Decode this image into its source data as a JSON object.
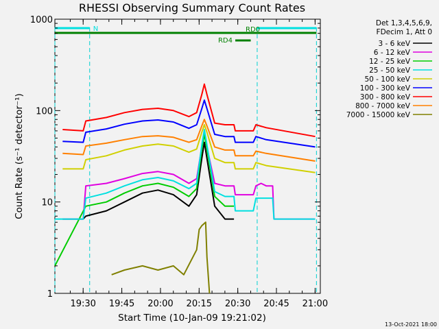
{
  "chart_data": {
    "type": "line",
    "title": "RHESSI Observing Summary Count Rates",
    "xlabel": "Start Time (10-Jan-09 19:21:02)",
    "ylabel": "Count Rate (s⁻¹ detector⁻¹)",
    "ylog": true,
    "xlim_minutes": [
      -2.0,
      101.0
    ],
    "ylim": [
      1,
      1000
    ],
    "x_ticks": [
      {
        "label": "19:30",
        "min": 8.97
      },
      {
        "label": "19:45",
        "min": 23.97
      },
      {
        "label": "20:00",
        "min": 38.97
      },
      {
        "label": "20:15",
        "min": 53.97
      },
      {
        "label": "20:30",
        "min": 68.97
      },
      {
        "label": "20:45",
        "min": 83.97
      },
      {
        "label": "21:00",
        "min": 98.97
      }
    ],
    "y_ticks": [
      "1",
      "10",
      "100",
      "1000"
    ],
    "legend": {
      "header": [
        "Det 1,3,4,5,6,9,",
        "FDecim 1, Att 0"
      ],
      "placement": "right"
    },
    "series": [
      {
        "name": "3 - 6 keV",
        "color": "#000000",
        "x": [
          1,
          9,
          10,
          18,
          25,
          32,
          38,
          44,
          50,
          53,
          55,
          56,
          57,
          60,
          64,
          67.5
        ],
        "y": [
          6.5,
          6.5,
          7,
          8,
          10,
          12.5,
          13.5,
          12,
          9,
          12,
          30,
          45,
          30,
          9,
          6.5,
          6.5
        ]
      },
      {
        "name": "6 - 12 keV",
        "color": "#e000e0",
        "x": [
          1,
          9,
          10,
          18,
          25,
          32,
          38,
          44,
          50,
          53,
          55,
          56,
          57,
          60,
          64,
          67.5,
          68,
          75,
          76,
          78,
          80,
          82.5,
          83,
          99
        ],
        "y": [
          6.5,
          6.5,
          15,
          16,
          18,
          20.5,
          21.5,
          20,
          16,
          18,
          40,
          60,
          40,
          16,
          15,
          15,
          12,
          12,
          15,
          16,
          15,
          15,
          6.5,
          6.5
        ]
      },
      {
        "name": "12 - 25 keV",
        "color": "#00cc00",
        "x": [
          -2,
          10,
          18,
          25,
          32,
          38,
          44,
          50,
          53,
          55,
          56,
          57,
          60,
          64,
          67.5
        ],
        "y": [
          2,
          9,
          10,
          12.5,
          15,
          16,
          14.5,
          11.5,
          14,
          38,
          55,
          38,
          11.5,
          9,
          9
        ]
      },
      {
        "name": "25 - 50 keV",
        "color": "#00e0e0",
        "x": [
          -2,
          9,
          10,
          18,
          25,
          32,
          38,
          44,
          50,
          53,
          55,
          56,
          57,
          60,
          64,
          67.5,
          68,
          75,
          76,
          82.5,
          83,
          99
        ],
        "y": [
          6.5,
          6.5,
          11,
          12.5,
          15,
          17.5,
          18.5,
          17,
          14,
          16,
          42,
          62,
          42,
          13,
          11.5,
          11.5,
          8,
          8,
          11,
          11,
          6.5,
          6.5
        ]
      },
      {
        "name": "50 - 100 keV",
        "color": "#d0d000",
        "x": [
          1,
          9,
          10,
          18,
          25,
          32,
          38,
          44,
          50,
          53,
          55,
          56,
          57,
          60,
          64,
          67.5,
          68,
          75,
          76,
          80,
          99
        ],
        "y": [
          23,
          23,
          29,
          32,
          37,
          41,
          43,
          41,
          35,
          38,
          58,
          70,
          58,
          30,
          27,
          27,
          23,
          23,
          27,
          25,
          21
        ]
      },
      {
        "name": "100 - 300 keV",
        "color": "#0000ff",
        "x": [
          1,
          9,
          10,
          18,
          25,
          32,
          38,
          44,
          50,
          53,
          55,
          56,
          57,
          60,
          64,
          67.5,
          68,
          75,
          76,
          80,
          99
        ],
        "y": [
          46,
          45,
          58,
          63,
          71,
          77,
          79,
          75,
          64,
          70,
          105,
          130,
          105,
          55,
          52,
          52,
          45,
          45,
          52,
          48,
          40
        ]
      },
      {
        "name": "300 - 800 keV",
        "color": "#ff0000",
        "x": [
          1,
          9,
          10,
          18,
          25,
          32,
          38,
          44,
          50,
          53,
          55,
          56,
          57,
          60,
          64,
          67.5,
          68,
          75,
          76,
          80,
          99
        ],
        "y": [
          62,
          60,
          77,
          84,
          95,
          103,
          106,
          100,
          86,
          95,
          150,
          195,
          150,
          73,
          70,
          70,
          60,
          60,
          70,
          65,
          52
        ]
      },
      {
        "name": "800 - 7000 keV",
        "color": "#ff8000",
        "x": [
          1,
          9,
          10,
          18,
          25,
          32,
          38,
          44,
          50,
          53,
          55,
          56,
          57,
          60,
          64,
          67.5,
          68,
          75,
          76,
          80,
          99
        ],
        "y": [
          34,
          33,
          41,
          44,
          48,
          52,
          53,
          51,
          45,
          48,
          68,
          80,
          68,
          40,
          37,
          37,
          32,
          32,
          36,
          34,
          28
        ]
      },
      {
        "name": "7000 - 15000 keV",
        "color": "#808000",
        "x": [
          20,
          25,
          32,
          38,
          44,
          48,
          53,
          54,
          55,
          56.5,
          57,
          58
        ],
        "y": [
          1.6,
          1.8,
          2.0,
          1.8,
          2.0,
          1.6,
          3.0,
          5.0,
          5.5,
          6.0,
          2.5,
          1.0
        ]
      }
    ],
    "annotations": {
      "saa_dashed_lines_min": [
        -2.0,
        11.5,
        76.5,
        99.5
      ],
      "night_bars": [
        {
          "label": "N",
          "x0": -2.0,
          "x1": 11.5,
          "color": "#00e0e0"
        },
        {
          "label": "",
          "x0": 76.5,
          "x1": 99.5,
          "color": "#00e0e0"
        }
      ],
      "decimation_bars": [
        {
          "label": "RD0",
          "x0": -2.0,
          "x1": 99.5,
          "color": "#008000"
        },
        {
          "label": "RD4",
          "x0": 68.0,
          "x1": 74.0,
          "color": "#008000"
        }
      ]
    },
    "footer_date": "13-Oct-2021 18:00"
  }
}
